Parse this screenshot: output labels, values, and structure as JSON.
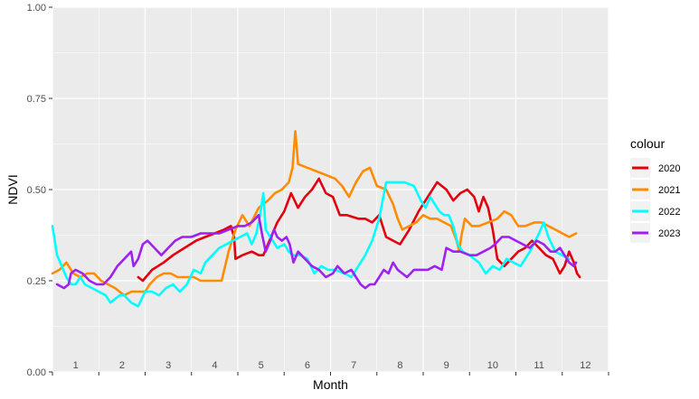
{
  "chart_data": {
    "type": "line",
    "xlabel": "Month",
    "ylabel": "NDVI",
    "ylim": [
      0,
      1
    ],
    "yticks": [
      "0.00",
      "0.25",
      "0.50",
      "0.75",
      "1.00"
    ],
    "xlim": [
      0,
      12
    ],
    "month_labels": [
      "1",
      "2",
      "3",
      "4",
      "5",
      "6",
      "7",
      "8",
      "9",
      "10",
      "11",
      "12"
    ],
    "grid": true,
    "legend": {
      "title": "colour",
      "position": "right"
    },
    "series": [
      {
        "name": "2020",
        "color": "#e3000f",
        "points": [
          [
            1.85,
            0.26
          ],
          [
            1.95,
            0.25
          ],
          [
            2.15,
            0.28
          ],
          [
            2.4,
            0.3
          ],
          [
            2.6,
            0.32
          ],
          [
            2.85,
            0.34
          ],
          [
            3.1,
            0.36
          ],
          [
            3.3,
            0.37
          ],
          [
            3.5,
            0.38
          ],
          [
            3.7,
            0.39
          ],
          [
            3.85,
            0.4
          ],
          [
            3.92,
            0.37
          ],
          [
            3.95,
            0.31
          ],
          [
            4.1,
            0.32
          ],
          [
            4.3,
            0.33
          ],
          [
            4.45,
            0.32
          ],
          [
            4.55,
            0.32
          ],
          [
            4.65,
            0.35
          ],
          [
            4.85,
            0.41
          ],
          [
            5.0,
            0.44
          ],
          [
            5.15,
            0.49
          ],
          [
            5.3,
            0.45
          ],
          [
            5.45,
            0.48
          ],
          [
            5.6,
            0.5
          ],
          [
            5.75,
            0.53
          ],
          [
            5.9,
            0.49
          ],
          [
            6.05,
            0.48
          ],
          [
            6.2,
            0.43
          ],
          [
            6.35,
            0.43
          ],
          [
            6.6,
            0.42
          ],
          [
            6.75,
            0.42
          ],
          [
            6.9,
            0.41
          ],
          [
            7.05,
            0.43
          ],
          [
            7.2,
            0.37
          ],
          [
            7.35,
            0.36
          ],
          [
            7.5,
            0.35
          ],
          [
            7.7,
            0.39
          ],
          [
            7.9,
            0.44
          ],
          [
            8.1,
            0.48
          ],
          [
            8.3,
            0.52
          ],
          [
            8.5,
            0.5
          ],
          [
            8.65,
            0.47
          ],
          [
            8.8,
            0.49
          ],
          [
            8.95,
            0.5
          ],
          [
            9.1,
            0.48
          ],
          [
            9.2,
            0.44
          ],
          [
            9.3,
            0.48
          ],
          [
            9.4,
            0.45
          ],
          [
            9.5,
            0.39
          ],
          [
            9.6,
            0.31
          ],
          [
            9.75,
            0.29
          ],
          [
            9.9,
            0.31
          ],
          [
            10.05,
            0.33
          ],
          [
            10.2,
            0.34
          ],
          [
            10.35,
            0.36
          ],
          [
            10.5,
            0.34
          ],
          [
            10.65,
            0.32
          ],
          [
            10.8,
            0.31
          ],
          [
            10.95,
            0.27
          ],
          [
            11.05,
            0.29
          ],
          [
            11.15,
            0.33
          ],
          [
            11.25,
            0.3
          ],
          [
            11.32,
            0.27
          ],
          [
            11.38,
            0.26
          ]
        ]
      },
      {
        "name": "2021",
        "color": "#ff8c00",
        "points": [
          [
            0.0,
            0.27
          ],
          [
            0.15,
            0.28
          ],
          [
            0.3,
            0.3
          ],
          [
            0.45,
            0.27
          ],
          [
            0.6,
            0.26
          ],
          [
            0.75,
            0.27
          ],
          [
            0.9,
            0.27
          ],
          [
            1.05,
            0.25
          ],
          [
            1.2,
            0.24
          ],
          [
            1.35,
            0.23
          ],
          [
            1.55,
            0.21
          ],
          [
            1.7,
            0.22
          ],
          [
            1.85,
            0.22
          ],
          [
            2.0,
            0.22
          ],
          [
            2.1,
            0.24
          ],
          [
            2.25,
            0.26
          ],
          [
            2.4,
            0.27
          ],
          [
            2.55,
            0.27
          ],
          [
            2.7,
            0.26
          ],
          [
            2.85,
            0.26
          ],
          [
            3.05,
            0.26
          ],
          [
            3.2,
            0.25
          ],
          [
            3.35,
            0.25
          ],
          [
            3.5,
            0.25
          ],
          [
            3.65,
            0.25
          ],
          [
            3.8,
            0.33
          ],
          [
            3.95,
            0.39
          ],
          [
            4.1,
            0.43
          ],
          [
            4.25,
            0.4
          ],
          [
            4.45,
            0.45
          ],
          [
            4.65,
            0.47
          ],
          [
            4.8,
            0.49
          ],
          [
            4.95,
            0.5
          ],
          [
            5.1,
            0.52
          ],
          [
            5.18,
            0.56
          ],
          [
            5.24,
            0.66
          ],
          [
            5.3,
            0.57
          ],
          [
            5.5,
            0.56
          ],
          [
            5.7,
            0.55
          ],
          [
            5.9,
            0.54
          ],
          [
            6.1,
            0.53
          ],
          [
            6.25,
            0.51
          ],
          [
            6.4,
            0.48
          ],
          [
            6.55,
            0.52
          ],
          [
            6.7,
            0.55
          ],
          [
            6.85,
            0.56
          ],
          [
            7.0,
            0.51
          ],
          [
            7.2,
            0.5
          ],
          [
            7.35,
            0.46
          ],
          [
            7.45,
            0.42
          ],
          [
            7.55,
            0.39
          ],
          [
            7.7,
            0.4
          ],
          [
            7.85,
            0.41
          ],
          [
            8.0,
            0.43
          ],
          [
            8.15,
            0.42
          ],
          [
            8.3,
            0.42
          ],
          [
            8.45,
            0.41
          ],
          [
            8.6,
            0.4
          ],
          [
            8.72,
            0.36
          ],
          [
            8.78,
            0.33
          ],
          [
            8.82,
            0.37
          ],
          [
            8.9,
            0.42
          ],
          [
            9.05,
            0.4
          ],
          [
            9.2,
            0.4
          ],
          [
            9.4,
            0.41
          ],
          [
            9.6,
            0.42
          ],
          [
            9.75,
            0.44
          ],
          [
            9.9,
            0.43
          ],
          [
            10.05,
            0.4
          ],
          [
            10.2,
            0.4
          ],
          [
            10.4,
            0.41
          ],
          [
            10.55,
            0.41
          ],
          [
            10.7,
            0.4
          ],
          [
            10.85,
            0.39
          ],
          [
            11.0,
            0.38
          ],
          [
            11.15,
            0.37
          ],
          [
            11.3,
            0.38
          ]
        ]
      },
      {
        "name": "2022",
        "color": "#00ffff",
        "points": [
          [
            0.0,
            0.4
          ],
          [
            0.1,
            0.32
          ],
          [
            0.2,
            0.29
          ],
          [
            0.3,
            0.26
          ],
          [
            0.4,
            0.24
          ],
          [
            0.5,
            0.24
          ],
          [
            0.6,
            0.26
          ],
          [
            0.7,
            0.24
          ],
          [
            0.85,
            0.23
          ],
          [
            1.0,
            0.22
          ],
          [
            1.15,
            0.21
          ],
          [
            1.25,
            0.19
          ],
          [
            1.35,
            0.2
          ],
          [
            1.45,
            0.21
          ],
          [
            1.55,
            0.21
          ],
          [
            1.7,
            0.19
          ],
          [
            1.85,
            0.18
          ],
          [
            2.0,
            0.22
          ],
          [
            2.15,
            0.22
          ],
          [
            2.3,
            0.21
          ],
          [
            2.45,
            0.23
          ],
          [
            2.6,
            0.24
          ],
          [
            2.75,
            0.22
          ],
          [
            2.9,
            0.24
          ],
          [
            3.05,
            0.28
          ],
          [
            3.2,
            0.27
          ],
          [
            3.3,
            0.3
          ],
          [
            3.45,
            0.32
          ],
          [
            3.6,
            0.34
          ],
          [
            3.75,
            0.35
          ],
          [
            3.9,
            0.36
          ],
          [
            4.05,
            0.37
          ],
          [
            4.2,
            0.38
          ],
          [
            4.3,
            0.35
          ],
          [
            4.4,
            0.38
          ],
          [
            4.48,
            0.43
          ],
          [
            4.55,
            0.49
          ],
          [
            4.6,
            0.39
          ],
          [
            4.7,
            0.37
          ],
          [
            4.85,
            0.34
          ],
          [
            5.0,
            0.35
          ],
          [
            5.1,
            0.33
          ],
          [
            5.2,
            0.32
          ],
          [
            5.35,
            0.32
          ],
          [
            5.5,
            0.31
          ],
          [
            5.65,
            0.27
          ],
          [
            5.8,
            0.29
          ],
          [
            5.95,
            0.28
          ],
          [
            6.1,
            0.28
          ],
          [
            6.3,
            0.27
          ],
          [
            6.45,
            0.26
          ],
          [
            6.6,
            0.29
          ],
          [
            6.75,
            0.32
          ],
          [
            6.9,
            0.36
          ],
          [
            7.05,
            0.42
          ],
          [
            7.2,
            0.52
          ],
          [
            7.4,
            0.52
          ],
          [
            7.6,
            0.52
          ],
          [
            7.8,
            0.51
          ],
          [
            7.95,
            0.47
          ],
          [
            8.05,
            0.45
          ],
          [
            8.15,
            0.48
          ],
          [
            8.25,
            0.46
          ],
          [
            8.35,
            0.44
          ],
          [
            8.45,
            0.43
          ],
          [
            8.55,
            0.43
          ],
          [
            8.65,
            0.4
          ],
          [
            8.75,
            0.35
          ],
          [
            8.85,
            0.33
          ],
          [
            9.0,
            0.32
          ],
          [
            9.2,
            0.3
          ],
          [
            9.35,
            0.27
          ],
          [
            9.5,
            0.29
          ],
          [
            9.65,
            0.28
          ],
          [
            9.8,
            0.31
          ],
          [
            9.95,
            0.3
          ],
          [
            10.1,
            0.29
          ],
          [
            10.3,
            0.33
          ],
          [
            10.5,
            0.38
          ],
          [
            10.6,
            0.41
          ],
          [
            10.7,
            0.37
          ],
          [
            10.85,
            0.33
          ],
          [
            11.0,
            0.32
          ],
          [
            11.15,
            0.31
          ]
        ]
      },
      {
        "name": "2023",
        "color": "#a020f0",
        "points": [
          [
            0.1,
            0.24
          ],
          [
            0.25,
            0.23
          ],
          [
            0.35,
            0.24
          ],
          [
            0.4,
            0.27
          ],
          [
            0.5,
            0.28
          ],
          [
            0.65,
            0.27
          ],
          [
            0.8,
            0.25
          ],
          [
            0.95,
            0.24
          ],
          [
            1.1,
            0.24
          ],
          [
            1.25,
            0.26
          ],
          [
            1.4,
            0.29
          ],
          [
            1.55,
            0.31
          ],
          [
            1.7,
            0.33
          ],
          [
            1.75,
            0.29
          ],
          [
            1.85,
            0.31
          ],
          [
            1.95,
            0.35
          ],
          [
            2.05,
            0.36
          ],
          [
            2.2,
            0.34
          ],
          [
            2.35,
            0.32
          ],
          [
            2.5,
            0.34
          ],
          [
            2.65,
            0.36
          ],
          [
            2.8,
            0.37
          ],
          [
            3.0,
            0.37
          ],
          [
            3.2,
            0.38
          ],
          [
            3.4,
            0.38
          ],
          [
            3.6,
            0.38
          ],
          [
            3.8,
            0.39
          ],
          [
            4.0,
            0.4
          ],
          [
            4.15,
            0.4
          ],
          [
            4.3,
            0.41
          ],
          [
            4.45,
            0.43
          ],
          [
            4.52,
            0.38
          ],
          [
            4.6,
            0.33
          ],
          [
            4.7,
            0.36
          ],
          [
            4.78,
            0.39
          ],
          [
            4.85,
            0.37
          ],
          [
            4.95,
            0.36
          ],
          [
            5.05,
            0.37
          ],
          [
            5.12,
            0.35
          ],
          [
            5.2,
            0.3
          ],
          [
            5.3,
            0.33
          ],
          [
            5.45,
            0.31
          ],
          [
            5.6,
            0.29
          ],
          [
            5.75,
            0.28
          ],
          [
            5.9,
            0.26
          ],
          [
            6.05,
            0.27
          ],
          [
            6.15,
            0.29
          ],
          [
            6.3,
            0.27
          ],
          [
            6.45,
            0.28
          ],
          [
            6.55,
            0.26
          ],
          [
            6.65,
            0.24
          ],
          [
            6.75,
            0.23
          ],
          [
            6.85,
            0.24
          ],
          [
            6.95,
            0.24
          ],
          [
            7.05,
            0.26
          ],
          [
            7.15,
            0.28
          ],
          [
            7.25,
            0.27
          ],
          [
            7.35,
            0.3
          ],
          [
            7.45,
            0.28
          ],
          [
            7.55,
            0.27
          ],
          [
            7.65,
            0.26
          ],
          [
            7.8,
            0.28
          ],
          [
            7.95,
            0.28
          ],
          [
            8.1,
            0.28
          ],
          [
            8.25,
            0.29
          ],
          [
            8.4,
            0.28
          ],
          [
            8.5,
            0.34
          ],
          [
            8.65,
            0.33
          ],
          [
            8.8,
            0.33
          ],
          [
            9.0,
            0.32
          ],
          [
            9.15,
            0.32
          ],
          [
            9.3,
            0.33
          ],
          [
            9.45,
            0.34
          ],
          [
            9.55,
            0.35
          ],
          [
            9.7,
            0.37
          ],
          [
            9.85,
            0.37
          ],
          [
            10.0,
            0.36
          ],
          [
            10.15,
            0.35
          ],
          [
            10.3,
            0.34
          ],
          [
            10.45,
            0.36
          ],
          [
            10.6,
            0.35
          ],
          [
            10.75,
            0.33
          ],
          [
            10.85,
            0.33
          ],
          [
            10.95,
            0.34
          ],
          [
            11.05,
            0.32
          ],
          [
            11.15,
            0.3
          ],
          [
            11.25,
            0.29
          ],
          [
            11.3,
            0.3
          ]
        ]
      }
    ]
  }
}
